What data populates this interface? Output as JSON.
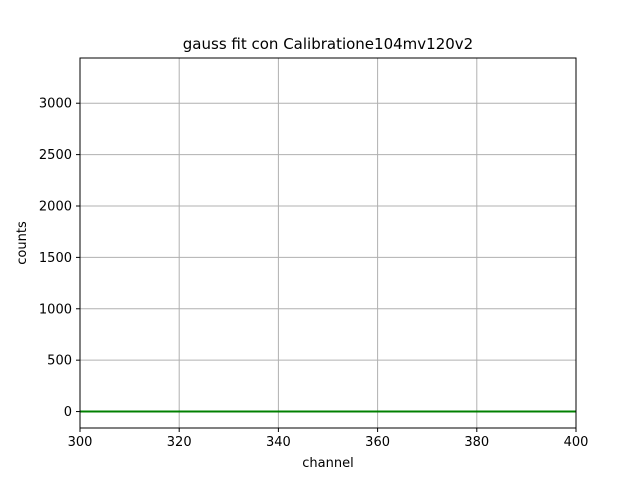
{
  "chart_data": {
    "type": "line",
    "title": "gauss fit con Calibratione104mv120v2",
    "xlabel": "channel",
    "ylabel": "counts",
    "xlim": [
      300,
      400
    ],
    "ylim": [
      -160,
      3440
    ],
    "x_ticks": [
      300,
      320,
      340,
      360,
      380,
      400
    ],
    "y_ticks": [
      0,
      500,
      1000,
      1500,
      2000,
      2500,
      3000
    ],
    "grid": true,
    "series": [
      {
        "color": "#008000",
        "x": [
          300,
          400
        ],
        "y": [
          0,
          0
        ]
      }
    ]
  }
}
